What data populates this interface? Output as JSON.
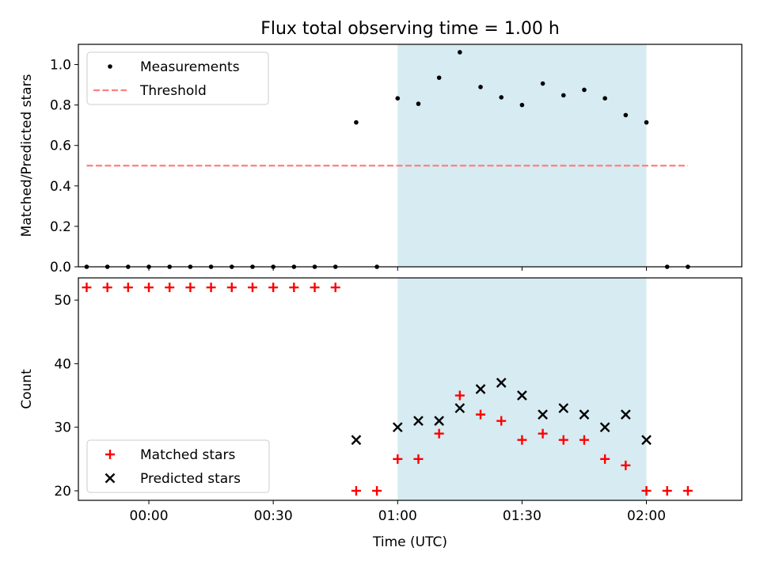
{
  "figure": {
    "title": "Flux total observing time = 1.00 h",
    "shaded_region": {
      "start": "01:00",
      "end": "02:00",
      "color": "#add8e6"
    }
  },
  "chart_data": [
    {
      "type": "scatter",
      "title": "Flux total observing time = 1.00 h",
      "xlabel": "",
      "ylabel": "Matched/Predicted stars",
      "xlim": [
        "23:43",
        "02:23"
      ],
      "ylim": [
        0,
        1.1
      ],
      "yticks": [
        0.0,
        0.2,
        0.4,
        0.6,
        0.8,
        1.0
      ],
      "ytick_labels": [
        "0.0",
        "0.2",
        "0.4",
        "0.6",
        "0.8",
        "1.0"
      ],
      "grid": false,
      "legend": "top-left",
      "series": [
        {
          "name": "Measurements",
          "kind": "points",
          "color": "#000000",
          "x": [
            "23:45",
            "23:50",
            "23:55",
            "00:00",
            "00:05",
            "00:10",
            "00:15",
            "00:20",
            "00:25",
            "00:30",
            "00:35",
            "00:40",
            "00:45",
            "00:50",
            "00:55",
            "01:00",
            "01:05",
            "01:10",
            "01:15",
            "01:20",
            "01:25",
            "01:30",
            "01:35",
            "01:40",
            "01:45",
            "01:50",
            "01:55",
            "02:00",
            "02:05",
            "02:10"
          ],
          "y": [
            0,
            0,
            0,
            0,
            0,
            0,
            0,
            0,
            0,
            0,
            0,
            0,
            0,
            0.714,
            0,
            0.833,
            0.806,
            0.935,
            1.061,
            0.889,
            0.838,
            0.8,
            0.906,
            0.848,
            0.875,
            0.833,
            0.75,
            0.714,
            0,
            0
          ]
        },
        {
          "name": "Threshold",
          "kind": "dashed-line",
          "color": "#ff7f7f",
          "x": [
            "23:45",
            "02:10"
          ],
          "y": [
            0.5,
            0.5
          ]
        }
      ]
    },
    {
      "type": "scatter",
      "xlabel": "Time (UTC)",
      "ylabel": "Count",
      "xlim": [
        "23:43",
        "02:23"
      ],
      "ylim": [
        18.5,
        53.5
      ],
      "yticks": [
        20,
        30,
        40,
        50
      ],
      "ytick_labels": [
        "20",
        "30",
        "40",
        "50"
      ],
      "xticks": [
        "00:00",
        "00:30",
        "01:00",
        "01:30",
        "02:00"
      ],
      "xtick_labels": [
        "00:00",
        "00:30",
        "01:00",
        "01:30",
        "02:00"
      ],
      "grid": false,
      "legend": "bottom-left",
      "series": [
        {
          "name": "Matched stars",
          "marker": "plus",
          "color": "#ff0000",
          "x": [
            "23:45",
            "23:50",
            "23:55",
            "00:00",
            "00:05",
            "00:10",
            "00:15",
            "00:20",
            "00:25",
            "00:30",
            "00:35",
            "00:40",
            "00:45",
            "00:50",
            "00:55",
            "01:00",
            "01:05",
            "01:10",
            "01:15",
            "01:20",
            "01:25",
            "01:30",
            "01:35",
            "01:40",
            "01:45",
            "01:50",
            "01:55",
            "02:00",
            "02:05",
            "02:10"
          ],
          "y": [
            52,
            52,
            52,
            52,
            52,
            52,
            52,
            52,
            52,
            52,
            52,
            52,
            52,
            20,
            20,
            25,
            25,
            29,
            35,
            32,
            31,
            28,
            29,
            28,
            28,
            25,
            24,
            20,
            20,
            20
          ]
        },
        {
          "name": "Predicted stars",
          "marker": "x",
          "color": "#000000",
          "x": [
            "00:50",
            "01:00",
            "01:05",
            "01:10",
            "01:15",
            "01:20",
            "01:25",
            "01:30",
            "01:35",
            "01:40",
            "01:45",
            "01:50",
            "01:55",
            "02:00"
          ],
          "y": [
            28,
            30,
            31,
            31,
            33,
            36,
            37,
            35,
            32,
            33,
            32,
            30,
            32,
            28
          ]
        }
      ]
    }
  ]
}
